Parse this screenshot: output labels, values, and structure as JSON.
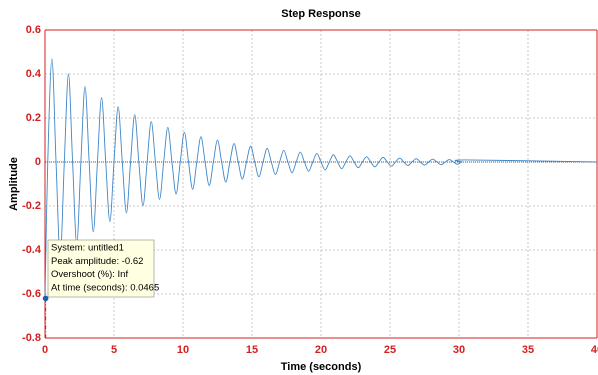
{
  "chart_data": {
    "type": "line",
    "title": "Step Response",
    "xlabel": "Time (seconds)",
    "ylabel": "Amplitude",
    "xlim": [
      0,
      40
    ],
    "xticks": [
      0,
      5,
      10,
      15,
      20,
      25,
      30,
      35,
      40
    ],
    "ylim": [
      -0.8,
      0.6
    ],
    "yticks": [
      -0.8,
      -0.6,
      -0.4,
      -0.2,
      0,
      0.2,
      0.4,
      0.6
    ],
    "grid": true,
    "series": [
      {
        "color": "#3f86c7",
        "x": [
          0,
          0.2,
          0.5,
          0.8,
          1.1,
          1.4,
          1.7,
          2,
          2.3,
          2.6,
          2.9,
          3.2,
          3.5,
          3.8,
          4.1,
          4.4,
          4.7,
          5,
          5.3,
          5.6,
          5.9,
          6.2,
          6.5,
          6.8,
          7.1,
          7.4,
          7.7,
          8,
          8.3,
          8.6,
          8.9,
          9.2,
          9.5,
          9.8,
          10.1,
          10.4,
          10.7,
          11,
          11.3,
          11.6,
          11.9,
          12.2,
          12.5,
          12.8,
          13.1,
          13.4,
          13.7,
          14,
          14.3,
          14.6,
          14.9,
          15.2,
          15.5,
          15.8,
          16.1,
          16.4,
          16.7,
          17,
          17.3,
          17.6,
          17.9,
          18.2,
          18.5,
          18.8,
          19.1,
          19.4,
          19.7,
          20,
          20.3,
          20.6,
          20.9,
          21.2,
          21.5,
          21.8,
          22.1,
          22.4,
          22.7,
          23,
          23.3,
          23.6,
          23.9,
          24.2,
          24.5,
          24.8,
          25.1,
          25.4,
          25.7,
          26,
          26.3,
          26.6,
          26.9,
          27.2,
          27.5,
          27.8,
          28.1,
          28.4,
          28.7,
          29,
          29.3,
          29.6,
          29.9,
          30.2,
          30.5,
          40
        ],
        "values": [
          -0.62,
          0,
          0.469,
          0,
          -0.433,
          0,
          0.401,
          0,
          -0.371,
          0,
          0.343,
          0,
          -0.317,
          0,
          0.293,
          0,
          -0.271,
          0,
          0.251,
          0,
          -0.232,
          0,
          0.215,
          0,
          -0.199,
          0,
          0.184,
          0,
          -0.17,
          0,
          0.157,
          0,
          -0.146,
          0,
          0.135,
          0,
          -0.124,
          0,
          0.115,
          0,
          -0.107,
          0,
          0.099,
          0,
          -0.091,
          0,
          0.084,
          0,
          -0.078,
          0,
          0.072,
          0,
          -0.067,
          0,
          0.062,
          0,
          -0.057,
          0,
          0.053,
          0,
          -0.049,
          0,
          0.045,
          0,
          -0.042,
          0,
          0.039,
          0,
          -0.036,
          0,
          0.033,
          0,
          -0.031,
          0,
          0.028,
          0,
          -0.026,
          0,
          0.024,
          0,
          -0.022,
          0,
          0.021,
          0,
          -0.019,
          0,
          0.018,
          0,
          -0.016,
          0,
          0.015,
          0,
          -0.014,
          0,
          0.013,
          0,
          -0.012,
          0,
          0.011,
          0,
          -0.01,
          0,
          0.0095,
          0
        ]
      }
    ],
    "datatip": {
      "x": 0.0465,
      "y": -0.62,
      "lines": [
        "System: untitled1",
        "Peak amplitude: -0.62",
        "Overshoot (%): Inf",
        "At time (seconds): 0.0465"
      ]
    }
  }
}
